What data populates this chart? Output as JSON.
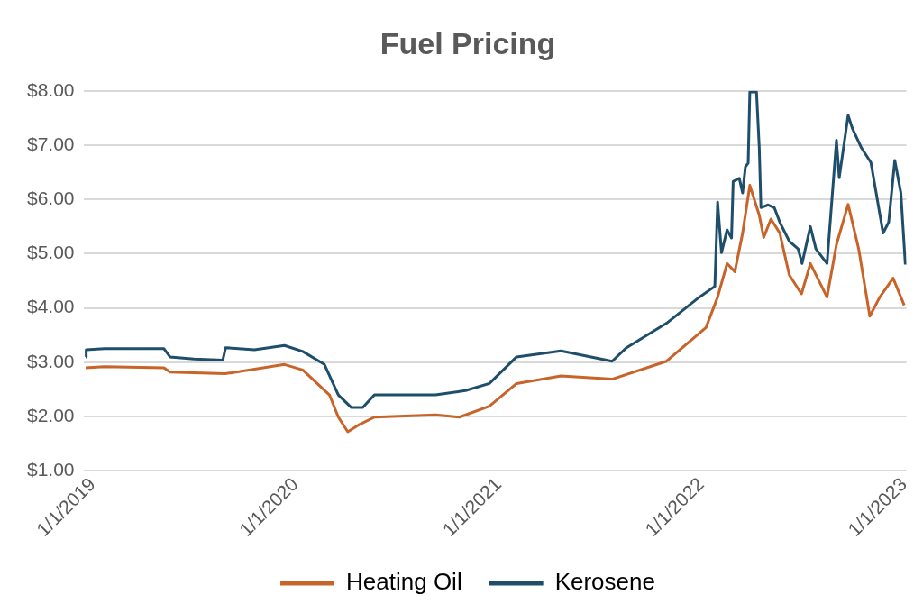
{
  "chart_data": {
    "type": "line",
    "title": "Fuel Pricing",
    "xlim": [
      "2018-12-15",
      "2023-01-05"
    ],
    "xticks": [
      {
        "value": "2019-01-01",
        "label": "1/1/2019"
      },
      {
        "value": "2020-01-01",
        "label": "1/1/2020"
      },
      {
        "value": "2021-01-01",
        "label": "1/1/2021"
      },
      {
        "value": "2022-01-01",
        "label": "1/1/2022"
      },
      {
        "value": "2023-01-01",
        "label": "1/1/2023"
      }
    ],
    "ylim": [
      1,
      8
    ],
    "yticks": [
      {
        "value": 1,
        "label": "$1.00"
      },
      {
        "value": 2,
        "label": "$2.00"
      },
      {
        "value": 3,
        "label": "$3.00"
      },
      {
        "value": 4,
        "label": "$4.00"
      },
      {
        "value": 5,
        "label": "$5.00"
      },
      {
        "value": 6,
        "label": "$6.00"
      },
      {
        "value": 7,
        "label": "$7.00"
      },
      {
        "value": 8,
        "label": "$8.00"
      }
    ],
    "grid": "y",
    "legend": "bottom",
    "line_style": "solid",
    "marker": "none",
    "series": [
      {
        "name": "Heating Oil",
        "color": "#c8642a",
        "x": [
          "2018-12-19",
          "2019-01-22",
          "2019-05-09",
          "2019-05-20",
          "2019-08-27",
          "2019-12-12",
          "2020-01-14",
          "2020-03-02",
          "2020-03-18",
          "2020-04-04",
          "2020-04-26",
          "2020-05-22",
          "2020-09-09",
          "2020-10-22",
          "2020-12-15",
          "2021-02-02",
          "2021-04-23",
          "2021-07-24",
          "2021-10-30",
          "2022-01-09",
          "2022-01-30",
          "2022-02-16",
          "2022-03-02",
          "2022-03-16",
          "2022-03-29",
          "2022-04-15",
          "2022-04-23",
          "2022-05-06",
          "2022-05-22",
          "2022-06-08",
          "2022-06-30",
          "2022-07-16",
          "2022-08-15",
          "2022-09-01",
          "2022-09-22",
          "2022-10-11",
          "2022-10-31",
          "2022-11-18",
          "2022-12-12",
          "2023-01-01"
        ],
        "values": [
          2.9,
          2.92,
          2.9,
          2.82,
          2.79,
          2.96,
          2.86,
          2.4,
          1.99,
          1.72,
          1.86,
          1.99,
          2.03,
          1.99,
          2.19,
          2.61,
          2.75,
          2.69,
          3.02,
          3.64,
          4.2,
          4.82,
          4.67,
          5.38,
          6.26,
          5.71,
          5.3,
          5.64,
          5.38,
          4.61,
          4.26,
          4.82,
          4.2,
          5.17,
          5.91,
          5.09,
          3.85,
          4.2,
          4.55,
          4.05
        ]
      },
      {
        "name": "Kerosene",
        "color": "#1f4e6b",
        "x": [
          "2018-12-19",
          "2018-12-20",
          "2019-01-22",
          "2019-05-09",
          "2019-05-20",
          "2019-07-02",
          "2019-08-23",
          "2019-08-28",
          "2019-10-19",
          "2019-12-12",
          "2020-01-14",
          "2020-02-22",
          "2020-03-18",
          "2020-04-10",
          "2020-05-01",
          "2020-05-22",
          "2020-09-09",
          "2020-11-02",
          "2020-12-15",
          "2021-02-02",
          "2021-04-23",
          "2021-07-24",
          "2021-08-19",
          "2021-10-30",
          "2021-12-28",
          "2022-01-25",
          "2022-01-30",
          "2022-02-06",
          "2022-02-16",
          "2022-02-24",
          "2022-02-27",
          "2022-03-10",
          "2022-03-16",
          "2022-03-21",
          "2022-03-26",
          "2022-03-29",
          "2022-04-10",
          "2022-04-15",
          "2022-04-18",
          "2022-05-01",
          "2022-05-12",
          "2022-05-22",
          "2022-06-08",
          "2022-06-24",
          "2022-07-01",
          "2022-07-16",
          "2022-07-26",
          "2022-08-15",
          "2022-09-01",
          "2022-09-06",
          "2022-09-22",
          "2022-09-30",
          "2022-10-16",
          "2022-11-02",
          "2022-11-24",
          "2022-12-04",
          "2022-12-15",
          "2022-12-26",
          "2023-01-03"
        ],
        "values": [
          3.1,
          3.23,
          3.25,
          3.25,
          3.1,
          3.06,
          3.04,
          3.27,
          3.23,
          3.31,
          3.2,
          2.96,
          2.4,
          2.17,
          2.17,
          2.4,
          2.4,
          2.48,
          2.61,
          3.1,
          3.21,
          3.02,
          3.27,
          3.72,
          4.2,
          4.4,
          5.95,
          5.02,
          5.44,
          5.29,
          6.33,
          6.39,
          6.12,
          6.6,
          6.67,
          7.98,
          7.98,
          6.95,
          5.85,
          5.9,
          5.85,
          5.58,
          5.23,
          5.09,
          4.82,
          5.5,
          5.09,
          4.82,
          7.09,
          6.4,
          7.55,
          7.3,
          6.95,
          6.68,
          5.38,
          5.58,
          6.72,
          6.12,
          4.8
        ]
      }
    ]
  }
}
